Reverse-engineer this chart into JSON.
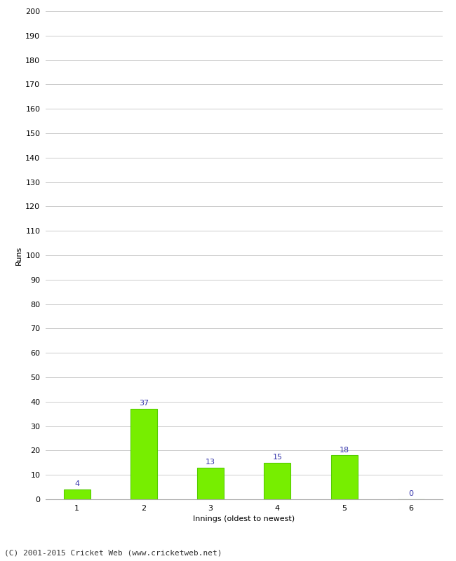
{
  "categories": [
    "1",
    "2",
    "3",
    "4",
    "5",
    "6"
  ],
  "values": [
    4,
    37,
    13,
    15,
    18,
    0
  ],
  "bar_color": "#77ee00",
  "bar_edge_color": "#55cc00",
  "label_color": "#3333aa",
  "ylabel": "Runs",
  "xlabel": "Innings (oldest to newest)",
  "ylim": [
    0,
    200
  ],
  "yticks": [
    0,
    10,
    20,
    30,
    40,
    50,
    60,
    70,
    80,
    90,
    100,
    110,
    120,
    130,
    140,
    150,
    160,
    170,
    180,
    190,
    200
  ],
  "footer": "(C) 2001-2015 Cricket Web (www.cricketweb.net)",
  "background_color": "#ffffff",
  "grid_color": "#cccccc",
  "label_fontsize": 8,
  "tick_fontsize": 8,
  "ylabel_fontsize": 8,
  "xlabel_fontsize": 8,
  "footer_fontsize": 8,
  "bar_width": 0.4
}
